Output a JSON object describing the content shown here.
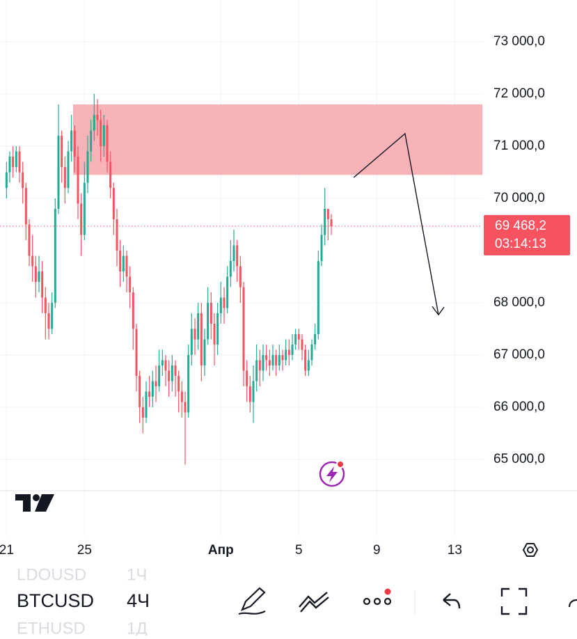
{
  "chart_data": {
    "type": "candlestick",
    "up_color": "#22ab94",
    "down_color": "#f7525f",
    "xlim": [
      -2,
      175
    ],
    "xticks": [
      {
        "value": 0,
        "label": "21"
      },
      {
        "value": 24,
        "label": "25"
      },
      {
        "value": 66,
        "label": "Апр"
      },
      {
        "value": 90,
        "label": "5"
      },
      {
        "value": 114,
        "label": "9"
      },
      {
        "value": 138,
        "label": "13"
      }
    ],
    "ylim": [
      64400,
      73800
    ],
    "yticks": [
      {
        "value": 65000,
        "label": "65 000,0"
      },
      {
        "value": 66000,
        "label": "66 000,0"
      },
      {
        "value": 67000,
        "label": "67 000,0"
      },
      {
        "value": 68000,
        "label": "68 000,0"
      },
      {
        "value": 70000,
        "label": "70 000,0"
      },
      {
        "value": 71000,
        "label": "71 000,0"
      },
      {
        "value": 72000,
        "label": "72 000,0"
      },
      {
        "value": 73000,
        "label": "73 000,0"
      }
    ],
    "grid": true,
    "open": [
      70200,
      70500,
      70800,
      70600,
      70900,
      70500,
      70200,
      69500,
      68900,
      68700,
      68400,
      68600,
      68100,
      67800,
      67500,
      68000,
      69800,
      71200,
      70600,
      70200,
      70900,
      71300,
      70800,
      69900,
      69300,
      70300,
      70900,
      71300,
      71600,
      71500,
      71000,
      71400,
      70700,
      70200,
      69600,
      69000,
      68600,
      68900,
      68500,
      68200,
      67500,
      66600,
      66000,
      65800,
      66300,
      66200,
      66500,
      66400,
      66800,
      66900,
      66700,
      66500,
      66800,
      66600,
      66300,
      66100,
      65900,
      67000,
      67500,
      67300,
      67800,
      66800,
      67300,
      68000,
      67600,
      67200,
      67800,
      68100,
      67900,
      68500,
      68800,
      69100,
      68700,
      68300,
      66700,
      66400,
      66100,
      66500,
      66900,
      66700,
      67000,
      66900,
      66800,
      67000,
      66800,
      67000,
      66900,
      67100,
      67000,
      67200,
      67400,
      67300,
      67100,
      66700,
      66900,
      67200,
      67400,
      68800,
      69300,
      69800,
      69600
    ],
    "high": [
      70700,
      70900,
      71000,
      71000,
      71000,
      70700,
      70300,
      69600,
      69300,
      68900,
      68900,
      68800,
      68300,
      68000,
      68200,
      70000,
      71800,
      71300,
      70800,
      71100,
      71600,
      71400,
      71000,
      70100,
      70700,
      71200,
      71500,
      72000,
      71900,
      71700,
      71600,
      71500,
      70900,
      70300,
      69800,
      69200,
      69100,
      69000,
      68700,
      68300,
      67600,
      66700,
      66200,
      66500,
      66600,
      66700,
      66800,
      67100,
      67100,
      67000,
      66900,
      67000,
      66900,
      66700,
      66500,
      66300,
      67200,
      67800,
      67700,
      68000,
      68000,
      67500,
      68300,
      68200,
      67800,
      68000,
      68400,
      68300,
      68700,
      69200,
      69400,
      69200,
      68900,
      68400,
      66900,
      66600,
      66800,
      67200,
      67100,
      67200,
      67200,
      67100,
      67200,
      67100,
      67200,
      67100,
      67300,
      67300,
      67400,
      67500,
      67500,
      67400,
      67200,
      67100,
      67300,
      67600,
      69000,
      69500,
      70200,
      69800,
      69700
    ],
    "low": [
      70000,
      70300,
      70400,
      70500,
      70300,
      69900,
      69200,
      68700,
      68400,
      68100,
      68200,
      67800,
      67300,
      67300,
      67400,
      67900,
      69700,
      70300,
      69900,
      70100,
      70700,
      70500,
      69600,
      68900,
      69200,
      70100,
      70700,
      71100,
      71200,
      70700,
      70800,
      70500,
      70000,
      69300,
      68700,
      68300,
      68400,
      68200,
      67900,
      67100,
      66300,
      65700,
      65500,
      65700,
      66000,
      66000,
      66100,
      66300,
      66600,
      66400,
      66200,
      66300,
      66200,
      65900,
      65800,
      64900,
      65800,
      66800,
      67000,
      67100,
      66500,
      66600,
      67200,
      67300,
      66800,
      67000,
      67600,
      67600,
      67800,
      68300,
      68600,
      68400,
      68000,
      66400,
      66100,
      65900,
      65700,
      66300,
      66400,
      66500,
      66700,
      66600,
      66700,
      66600,
      66700,
      66700,
      66800,
      66800,
      66900,
      67100,
      67100,
      66900,
      66600,
      66600,
      66800,
      67100,
      67300,
      68700,
      69100,
      69200,
      69300
    ],
    "close": [
      70500,
      70800,
      70600,
      70900,
      70500,
      70200,
      69500,
      68900,
      68700,
      68400,
      68600,
      68100,
      67800,
      67500,
      68000,
      69800,
      71200,
      70600,
      70200,
      70900,
      71300,
      70800,
      69900,
      69300,
      70300,
      70900,
      71300,
      71600,
      71500,
      71000,
      71400,
      70700,
      70200,
      69600,
      69000,
      68600,
      68900,
      68500,
      68200,
      67500,
      66600,
      66000,
      65800,
      66300,
      66200,
      66500,
      66400,
      66800,
      66900,
      66700,
      66500,
      66800,
      66600,
      66300,
      66100,
      65900,
      67000,
      67500,
      67300,
      67800,
      66800,
      67300,
      68000,
      67600,
      67200,
      67800,
      68100,
      67900,
      68500,
      68800,
      69100,
      68700,
      68300,
      66700,
      66400,
      66100,
      66500,
      66900,
      66700,
      67000,
      66900,
      66800,
      67000,
      66800,
      67000,
      66900,
      67100,
      67000,
      67200,
      67400,
      67300,
      67100,
      66700,
      66900,
      67200,
      67400,
      68800,
      69300,
      69800,
      69600,
      69468.2
    ],
    "last_price": {
      "value": 69468.2,
      "label": "69 468,2"
    },
    "countdown": "03:14:13",
    "zone": {
      "top": 71800,
      "bottom": 70450,
      "from": 20.5,
      "to": 146.5,
      "color": "#f8b3b8"
    },
    "arrow": {
      "x": [
        106.9,
        122.7,
        133.0
      ],
      "y": [
        70400,
        71240,
        67770
      ]
    }
  },
  "toolbar": {
    "symbols": [
      {
        "symbol": "LDOUSD",
        "interval": "1Ч"
      },
      {
        "symbol": "BTCUSD",
        "interval": "4Ч"
      },
      {
        "symbol": "ETHUSD",
        "interval": "1Д"
      }
    ]
  }
}
